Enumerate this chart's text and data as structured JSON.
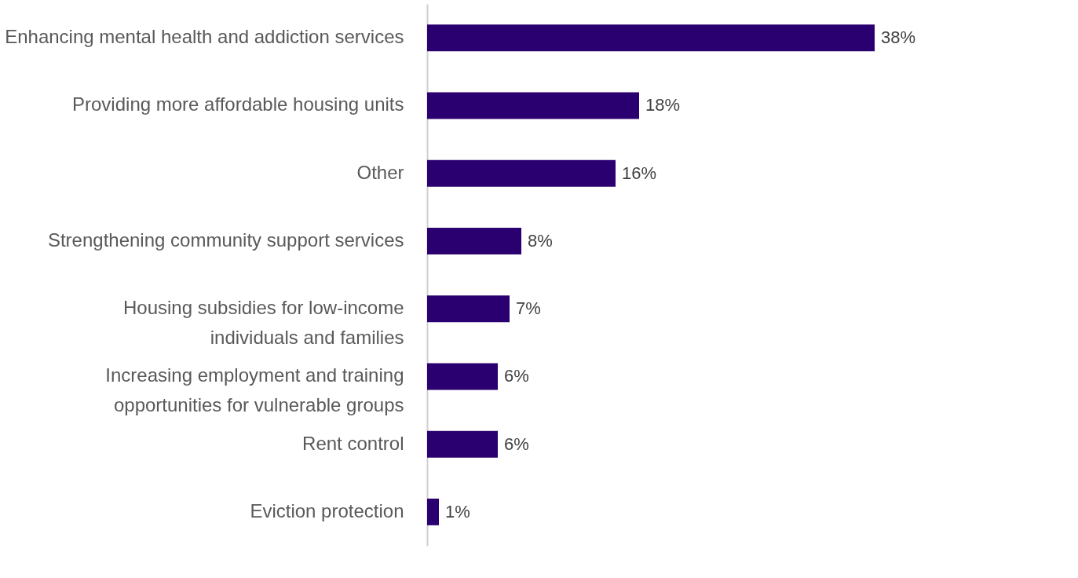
{
  "chart_data": {
    "type": "bar",
    "orientation": "horizontal",
    "categories": [
      "Enhancing mental health and addiction services",
      "Providing more affordable housing units",
      "Other",
      "Strengthening community support services",
      "Housing subsidies for low-income\nindividuals and families",
      "Increasing employment and training\nopportunities for vulnerable groups",
      "Rent control",
      "Eviction protection"
    ],
    "values": [
      38,
      18,
      16,
      8,
      7,
      6,
      6,
      1
    ],
    "value_labels": [
      "38%",
      "18%",
      "16%",
      "8%",
      "7%",
      "6%",
      "6%",
      "1%"
    ],
    "color": "#2a0070",
    "grid": false
  }
}
